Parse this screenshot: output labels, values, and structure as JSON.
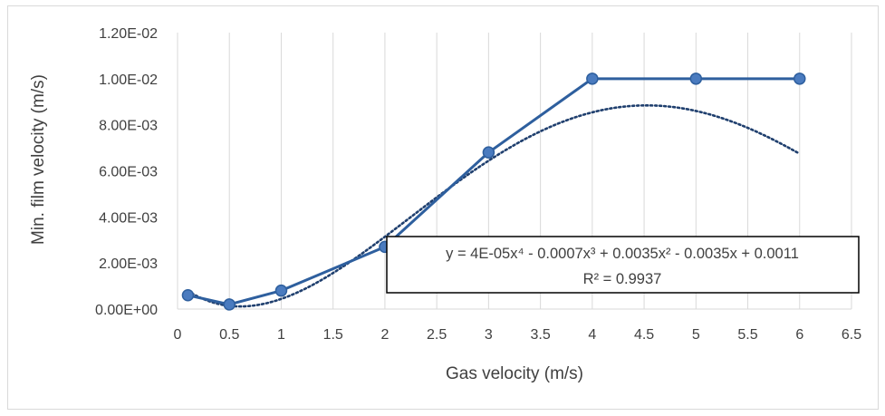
{
  "chart_data": {
    "type": "scatter",
    "xlabel": "Gas velocity (m/s)",
    "ylabel": "Min. film velocity (m/s)",
    "xlim": [
      0,
      6.5
    ],
    "ylim": [
      0,
      0.012
    ],
    "x_ticks": [
      "0",
      "0.5",
      "1",
      "1.5",
      "2",
      "2.5",
      "3",
      "3.5",
      "4",
      "4.5",
      "5",
      "5.5",
      "6",
      "6.5"
    ],
    "y_ticks": [
      "0.00E+00",
      "2.00E-03",
      "4.00E-03",
      "6.00E-03",
      "8.00E-03",
      "1.00E-02",
      "1.20E-02"
    ],
    "grid": "vertical",
    "series": [
      {
        "color": "#2e5f9e",
        "x": [
          0.1,
          0.5,
          1,
          2,
          3,
          4,
          5,
          6
        ],
        "y": [
          0.0006,
          0.0002,
          0.0008,
          0.0027,
          0.0068,
          0.01,
          0.01,
          0.01
        ],
        "marker": "circle",
        "line": "solid"
      }
    ],
    "trendline": {
      "type": "polynomial",
      "order": 4,
      "style": "dotted",
      "color": "#1f3f6e",
      "x_range": [
        0.1,
        6
      ],
      "coefficients": [
        4e-05,
        -0.0007,
        0.0035,
        -0.0035,
        0.0011
      ],
      "equation": "y = 4E-05x⁴ - 0.0007x³ + 0.0035x² - 0.0035x + 0.0011",
      "r_squared": "R² = 0.9937"
    }
  }
}
